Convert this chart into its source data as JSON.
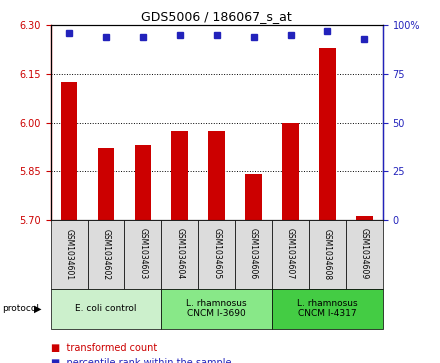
{
  "title": "GDS5006 / 186067_s_at",
  "samples": [
    "GSM1034601",
    "GSM1034602",
    "GSM1034603",
    "GSM1034604",
    "GSM1034605",
    "GSM1034606",
    "GSM1034607",
    "GSM1034608",
    "GSM1034609"
  ],
  "transformed_counts": [
    6.125,
    5.92,
    5.93,
    5.975,
    5.975,
    5.84,
    6.0,
    6.23,
    5.71
  ],
  "percentile_ranks": [
    96,
    94,
    94,
    95,
    95,
    94,
    95,
    97,
    93
  ],
  "ylim_left": [
    5.7,
    6.3
  ],
  "ylim_right": [
    0,
    100
  ],
  "yticks_left": [
    5.7,
    5.85,
    6.0,
    6.15,
    6.3
  ],
  "yticks_right": [
    0,
    25,
    50,
    75,
    100
  ],
  "bar_color": "#cc0000",
  "dot_color": "#2222bb",
  "bar_width": 0.45,
  "protocols": [
    {
      "label": "E. coli control",
      "samples": [
        0,
        1,
        2
      ],
      "color": "#ccf0cc"
    },
    {
      "label": "L. rhamnosus\nCNCM I-3690",
      "samples": [
        3,
        4,
        5
      ],
      "color": "#88e888"
    },
    {
      "label": "L. rhamnosus\nCNCM I-4317",
      "samples": [
        6,
        7,
        8
      ],
      "color": "#44cc44"
    }
  ],
  "axis_label_color_left": "#cc0000",
  "axis_label_color_right": "#2222bb"
}
